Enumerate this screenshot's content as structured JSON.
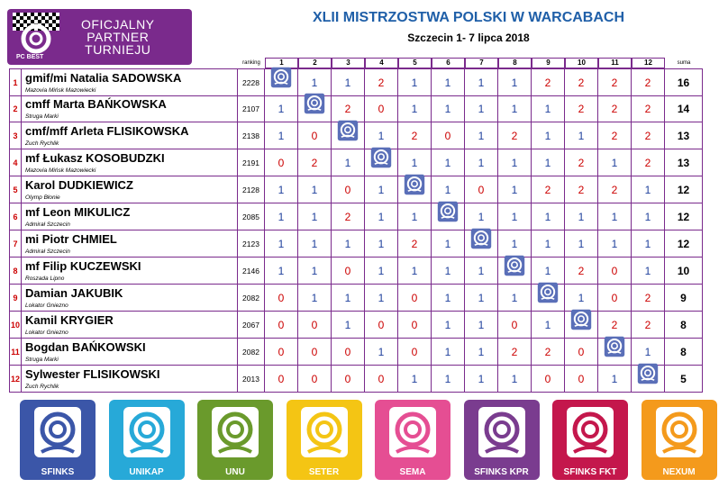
{
  "partner": {
    "line1": "OFICJALNY",
    "line2": "PARTNER",
    "line3": "TURNIEJU",
    "brand": "PC BEST"
  },
  "title": "XLII MISTRZOSTWA POLSKI W WARCABACH",
  "subtitle": "Szczecin 1- 7 lipca 2018",
  "headers": {
    "ranking": "ranking",
    "suma": "suma",
    "rounds": [
      "1",
      "2",
      "3",
      "4",
      "5",
      "6",
      "7",
      "8",
      "9",
      "10",
      "11",
      "12"
    ]
  },
  "players": [
    {
      "no": "1",
      "name": "gmif/mi Natalia SADOWSKA",
      "club": "Mazovia Mińsk Mazowiecki",
      "rank": "2228",
      "results": [
        null,
        "1",
        "1",
        "2",
        "1",
        "1",
        "1",
        "1",
        "2",
        "2",
        "2",
        "2"
      ],
      "sum": "16"
    },
    {
      "no": "2",
      "name": "cmff Marta BAŃKOWSKA",
      "club": "Struga Marki",
      "rank": "2107",
      "results": [
        "1",
        null,
        "2",
        "0",
        "1",
        "1",
        "1",
        "1",
        "1",
        "2",
        "2",
        "2"
      ],
      "sum": "14"
    },
    {
      "no": "3",
      "name": "cmf/mff Arleta FLISIKOWSKA",
      "club": "Zuch Rychlik",
      "rank": "2138",
      "results": [
        "1",
        "0",
        null,
        "1",
        "2",
        "0",
        "1",
        "2",
        "1",
        "1",
        "2",
        "2"
      ],
      "sum": "13"
    },
    {
      "no": "4",
      "name": "mf Łukasz KOSOBUDZKI",
      "club": "Mazovia Mińsk Mazowiecki",
      "rank": "2191",
      "results": [
        "0",
        "2",
        "1",
        null,
        "1",
        "1",
        "1",
        "1",
        "1",
        "2",
        "1",
        "2"
      ],
      "sum": "13"
    },
    {
      "no": "5",
      "name": "Karol DUDKIEWICZ",
      "club": "Olymp Błonie",
      "rank": "2128",
      "results": [
        "1",
        "1",
        "0",
        "1",
        null,
        "1",
        "0",
        "1",
        "2",
        "2",
        "2",
        "1"
      ],
      "sum": "12"
    },
    {
      "no": "6",
      "name": "mf Leon MIKULICZ",
      "club": "Admirał Szczecin",
      "rank": "2085",
      "results": [
        "1",
        "1",
        "2",
        "1",
        "1",
        null,
        "1",
        "1",
        "1",
        "1",
        "1",
        "1"
      ],
      "sum": "12"
    },
    {
      "no": "7",
      "name": "mi Piotr CHMIEL",
      "club": "Admirał Szczecin",
      "rank": "2123",
      "results": [
        "1",
        "1",
        "1",
        "1",
        "2",
        "1",
        null,
        "1",
        "1",
        "1",
        "1",
        "1"
      ],
      "sum": "12"
    },
    {
      "no": "8",
      "name": "mf Filip KUCZEWSKI",
      "club": "Roszada Lipno",
      "rank": "2146",
      "results": [
        "1",
        "1",
        "0",
        "1",
        "1",
        "1",
        "1",
        null,
        "1",
        "2",
        "0",
        "1"
      ],
      "sum": "10"
    },
    {
      "no": "9",
      "name": "Damian JAKUBIK",
      "club": "Lokator Gniezno",
      "rank": "2082",
      "results": [
        "0",
        "1",
        "1",
        "1",
        "0",
        "1",
        "1",
        "1",
        null,
        "1",
        "0",
        "2"
      ],
      "sum": "9"
    },
    {
      "no": "10",
      "name": "Kamil KRYGIER",
      "club": "Lokator Gniezno",
      "rank": "2067",
      "results": [
        "0",
        "0",
        "1",
        "0",
        "0",
        "1",
        "1",
        "0",
        "1",
        null,
        "2",
        "2"
      ],
      "sum": "8"
    },
    {
      "no": "11",
      "name": "Bogdan BAŃKOWSKI",
      "club": "Struga Marki",
      "rank": "2082",
      "results": [
        "0",
        "0",
        "0",
        "1",
        "0",
        "1",
        "1",
        "2",
        "2",
        "0",
        null,
        "1"
      ],
      "sum": "8"
    },
    {
      "no": "12",
      "name": "Sylwester FLISIKOWSKI",
      "club": "Zuch Rychlik",
      "rank": "2013",
      "results": [
        "0",
        "0",
        "0",
        "0",
        "1",
        "1",
        "1",
        "1",
        "0",
        "0",
        "1",
        null
      ],
      "sum": "5"
    }
  ],
  "logos": [
    {
      "label": "SFINKS",
      "color": "#3b56a8",
      "icon": "swirl-icon"
    },
    {
      "label": "UNIKAP",
      "color": "#27a9d8",
      "icon": "swirl-icon"
    },
    {
      "label": "UNU",
      "color": "#6a9a2c",
      "icon": "swirl-icon"
    },
    {
      "label": "SETER",
      "color": "#f4c514",
      "icon": "swirl-icon"
    },
    {
      "label": "SEMA",
      "color": "#e54e93",
      "icon": "swirl-icon"
    },
    {
      "label": "SFINKS KPR",
      "color": "#7a3c8f",
      "icon": "swirl-icon"
    },
    {
      "label": "SFINKS FKT",
      "color": "#c4174c",
      "icon": "swirl-icon"
    },
    {
      "label": "NEXUM",
      "color": "#f49a1c",
      "icon": "swirl-icon"
    }
  ]
}
